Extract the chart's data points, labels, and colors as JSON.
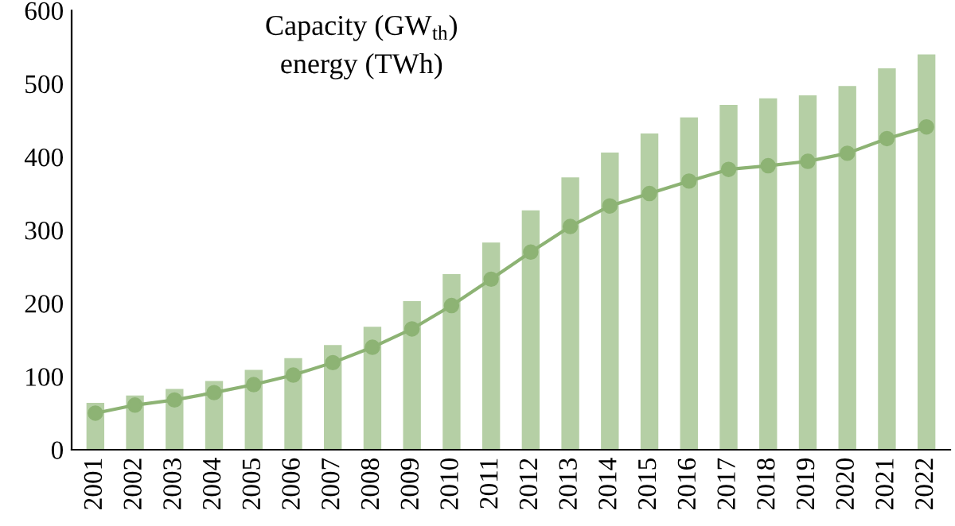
{
  "chart_data": {
    "type": "bar",
    "title": "Capacity (GW$_{th}$)\nenergy (TWh)",
    "categories": [
      "2001",
      "2002",
      "2003",
      "2004",
      "2005",
      "2006",
      "2007",
      "2008",
      "2009",
      "2010",
      "2011",
      "2012",
      "2013",
      "2014",
      "2015",
      "2016",
      "2017",
      "2018",
      "2019",
      "2020",
      "2021",
      "2022"
    ],
    "series": [
      {
        "color": "#b5cfa5",
        "values": [
          64,
          74,
          83,
          94,
          109,
          125,
          143,
          168,
          203,
          240,
          283,
          327,
          372,
          406,
          432,
          454,
          471,
          480,
          484,
          497,
          521,
          540
        ]
      },
      {
        "type": "line",
        "color": "#8db374",
        "marker": "circle",
        "values": [
          50,
          61,
          68,
          78,
          89,
          102,
          119,
          140,
          165,
          197,
          233,
          270,
          305,
          333,
          350,
          367,
          383,
          388,
          394,
          405,
          425,
          441
        ]
      }
    ],
    "ylim": [
      0,
      600
    ],
    "yticks": [
      0,
      100,
      200,
      300,
      400,
      500,
      600
    ],
    "grid": false,
    "legend": false
  }
}
